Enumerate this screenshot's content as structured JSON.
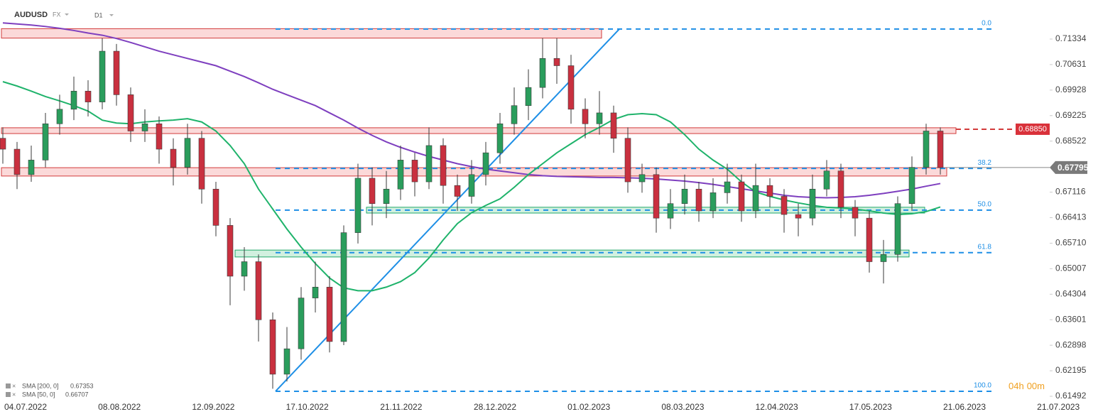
{
  "header": {
    "symbol": "AUDUSD",
    "market": "FX",
    "interval": "D1"
  },
  "chart_data": {
    "type": "candlestick",
    "x_labels": [
      "04.07.2022",
      "08.08.2022",
      "12.09.2022",
      "17.10.2022",
      "21.11.2022",
      "28.12.2022",
      "01.02.2023",
      "08.03.2023",
      "12.04.2023",
      "17.05.2023",
      "21.06.2023",
      "21.07.2023"
    ],
    "ylim": [
      0.61355,
      0.7241
    ],
    "yticks": [
      0.71334,
      0.70631,
      0.69928,
      0.69225,
      0.68522,
      0.67116,
      0.66413,
      {
        "value": 0.6571,
        "label": "0.65710"
      },
      0.65007,
      0.64304,
      0.63601,
      0.62898,
      0.62195,
      0.61492
    ],
    "up_color": "#2a9d5c",
    "down_color": "#c9303f",
    "candles": [
      [
        0.686,
        0.689,
        0.679,
        0.683
      ],
      [
        0.683,
        0.685,
        0.672,
        0.676
      ],
      [
        0.676,
        0.684,
        0.674,
        0.68
      ],
      [
        0.68,
        0.693,
        0.678,
        0.69
      ],
      [
        0.69,
        0.698,
        0.687,
        0.694
      ],
      [
        0.694,
        0.703,
        0.691,
        0.699
      ],
      [
        0.699,
        0.702,
        0.692,
        0.696
      ],
      [
        0.696,
        0.7136,
        0.694,
        0.71
      ],
      [
        0.71,
        0.712,
        0.695,
        0.698
      ],
      [
        0.698,
        0.7,
        0.685,
        0.688
      ],
      [
        0.688,
        0.694,
        0.685,
        0.69
      ],
      [
        0.69,
        0.692,
        0.679,
        0.683
      ],
      [
        0.683,
        0.686,
        0.673,
        0.678
      ],
      [
        0.678,
        0.69,
        0.676,
        0.686
      ],
      [
        0.686,
        0.688,
        0.668,
        0.672
      ],
      [
        0.672,
        0.674,
        0.659,
        0.662
      ],
      [
        0.662,
        0.664,
        0.64,
        0.648
      ],
      [
        0.648,
        0.656,
        0.644,
        0.652
      ],
      [
        0.652,
        0.654,
        0.63,
        0.636
      ],
      [
        0.636,
        0.638,
        0.617,
        0.621
      ],
      [
        0.621,
        0.634,
        0.619,
        0.628
      ],
      [
        0.628,
        0.645,
        0.625,
        0.642
      ],
      [
        0.642,
        0.652,
        0.638,
        0.645
      ],
      [
        0.645,
        0.648,
        0.627,
        0.63
      ],
      [
        0.63,
        0.662,
        0.629,
        0.66
      ],
      [
        0.66,
        0.679,
        0.657,
        0.675
      ],
      [
        0.675,
        0.678,
        0.662,
        0.668
      ],
      [
        0.668,
        0.677,
        0.664,
        0.672
      ],
      [
        0.672,
        0.684,
        0.669,
        0.68
      ],
      [
        0.68,
        0.682,
        0.67,
        0.674
      ],
      [
        0.674,
        0.689,
        0.672,
        0.684
      ],
      [
        0.684,
        0.686,
        0.668,
        0.673
      ],
      [
        0.673,
        0.676,
        0.666,
        0.67
      ],
      [
        0.67,
        0.68,
        0.668,
        0.676
      ],
      [
        0.676,
        0.685,
        0.673,
        0.682
      ],
      [
        0.682,
        0.693,
        0.679,
        0.69
      ],
      [
        0.69,
        0.7,
        0.687,
        0.695
      ],
      [
        0.695,
        0.705,
        0.691,
        0.7
      ],
      [
        0.7,
        0.7136,
        0.697,
        0.708
      ],
      [
        0.708,
        0.7136,
        0.701,
        0.706
      ],
      [
        0.706,
        0.709,
        0.69,
        0.694
      ],
      [
        0.694,
        0.697,
        0.686,
        0.69
      ],
      [
        0.69,
        0.699,
        0.687,
        0.693
      ],
      [
        0.693,
        0.695,
        0.682,
        0.686
      ],
      [
        0.686,
        0.689,
        0.671,
        0.674
      ],
      [
        0.674,
        0.679,
        0.671,
        0.676
      ],
      [
        0.676,
        0.678,
        0.66,
        0.664
      ],
      [
        0.664,
        0.672,
        0.661,
        0.668
      ],
      [
        0.668,
        0.676,
        0.665,
        0.672
      ],
      [
        0.672,
        0.674,
        0.663,
        0.666
      ],
      [
        0.666,
        0.675,
        0.664,
        0.671
      ],
      [
        0.671,
        0.679,
        0.668,
        0.674
      ],
      [
        0.674,
        0.676,
        0.663,
        0.666
      ],
      [
        0.666,
        0.679,
        0.664,
        0.673
      ],
      [
        0.673,
        0.675,
        0.667,
        0.67
      ],
      [
        0.67,
        0.672,
        0.66,
        0.665
      ],
      [
        0.665,
        0.668,
        0.659,
        0.664
      ],
      [
        0.664,
        0.676,
        0.662,
        0.672
      ],
      [
        0.672,
        0.68,
        0.67,
        0.677
      ],
      [
        0.677,
        0.679,
        0.664,
        0.667
      ],
      [
        0.667,
        0.669,
        0.659,
        0.664
      ],
      [
        0.664,
        0.666,
        0.649,
        0.652
      ],
      [
        0.652,
        0.658,
        0.646,
        0.654
      ],
      [
        0.654,
        0.67,
        0.652,
        0.668
      ],
      [
        0.668,
        0.681,
        0.666,
        0.678
      ],
      [
        0.678,
        0.69,
        0.676,
        0.688
      ],
      [
        0.688,
        0.689,
        0.676,
        0.67795
      ]
    ],
    "series": [
      {
        "name": "SMA [200, 0]",
        "last_label": "0.67353",
        "color": "#7e3fbf",
        "values": [
          0.7178,
          0.7175,
          0.7172,
          0.7168,
          0.7163,
          0.7157,
          0.715,
          0.7144,
          0.7135,
          0.7124,
          0.7112,
          0.71,
          0.709,
          0.708,
          0.707,
          0.706,
          0.7045,
          0.703,
          0.7013,
          0.6995,
          0.698,
          0.6965,
          0.695,
          0.693,
          0.691,
          0.6888,
          0.6868,
          0.685,
          0.6835,
          0.6822,
          0.681,
          0.68,
          0.679,
          0.6782,
          0.6775,
          0.677,
          0.6765,
          0.676,
          0.6757,
          0.6755,
          0.6754,
          0.6753,
          0.6752,
          0.6752,
          0.6751,
          0.675,
          0.6748,
          0.6745,
          0.6742,
          0.6738,
          0.6733,
          0.6727,
          0.6721,
          0.6715,
          0.6709,
          0.6703,
          0.6699,
          0.6697,
          0.6696,
          0.6697,
          0.6699,
          0.6703,
          0.6708,
          0.6714,
          0.672,
          0.6728,
          0.67353
        ]
      },
      {
        "name": "SMA [50, 0]",
        "last_label": "0.66707",
        "color": "#1fb36b",
        "values": [
          0.7016,
          0.7004,
          0.699,
          0.6975,
          0.6963,
          0.695,
          0.6935,
          0.691,
          0.6902,
          0.69,
          0.6905,
          0.6908,
          0.691,
          0.6914,
          0.6905,
          0.688,
          0.684,
          0.679,
          0.672,
          0.6665,
          0.661,
          0.656,
          0.6515,
          0.6475,
          0.6448,
          0.644,
          0.644,
          0.645,
          0.6465,
          0.649,
          0.653,
          0.658,
          0.6625,
          0.6655,
          0.6675,
          0.6693,
          0.6725,
          0.676,
          0.679,
          0.682,
          0.6845,
          0.687,
          0.689,
          0.6912,
          0.6925,
          0.6928,
          0.6925,
          0.6905,
          0.687,
          0.683,
          0.68,
          0.6775,
          0.674,
          0.6712,
          0.67,
          0.669,
          0.6682,
          0.6675,
          0.667,
          0.6668,
          0.6665,
          0.666,
          0.6654,
          0.665,
          0.6652,
          0.6658,
          0.66707
        ]
      }
    ],
    "fib_levels": [
      {
        "label": "0.0",
        "price": 0.7161
      },
      {
        "label": "38.2",
        "price": 0.6777
      },
      {
        "label": "50.0",
        "price": 0.6662
      },
      {
        "label": "61.8",
        "price": 0.6545
      },
      {
        "label": "100.0",
        "price": 0.6163
      }
    ],
    "zones": [
      {
        "top": 0.7162,
        "bottom": 0.7136,
        "kind": "resistance"
      },
      {
        "top": 0.6889,
        "bottom": 0.6873,
        "kind": "resistance"
      },
      {
        "top": 0.6779,
        "bottom": 0.6756,
        "kind": "resistance"
      },
      {
        "top": 0.667,
        "bottom": 0.6654,
        "kind": "support"
      },
      {
        "top": 0.6552,
        "bottom": 0.6533,
        "kind": "support"
      }
    ],
    "alert_level": {
      "value": 0.6885,
      "label": "0.68850"
    },
    "last_price": {
      "value": 0.67795,
      "label": "0.67795"
    },
    "countdown": {
      "hours": "04",
      "hours_unit": "h",
      "minutes": "00",
      "minutes_unit": "m"
    }
  }
}
